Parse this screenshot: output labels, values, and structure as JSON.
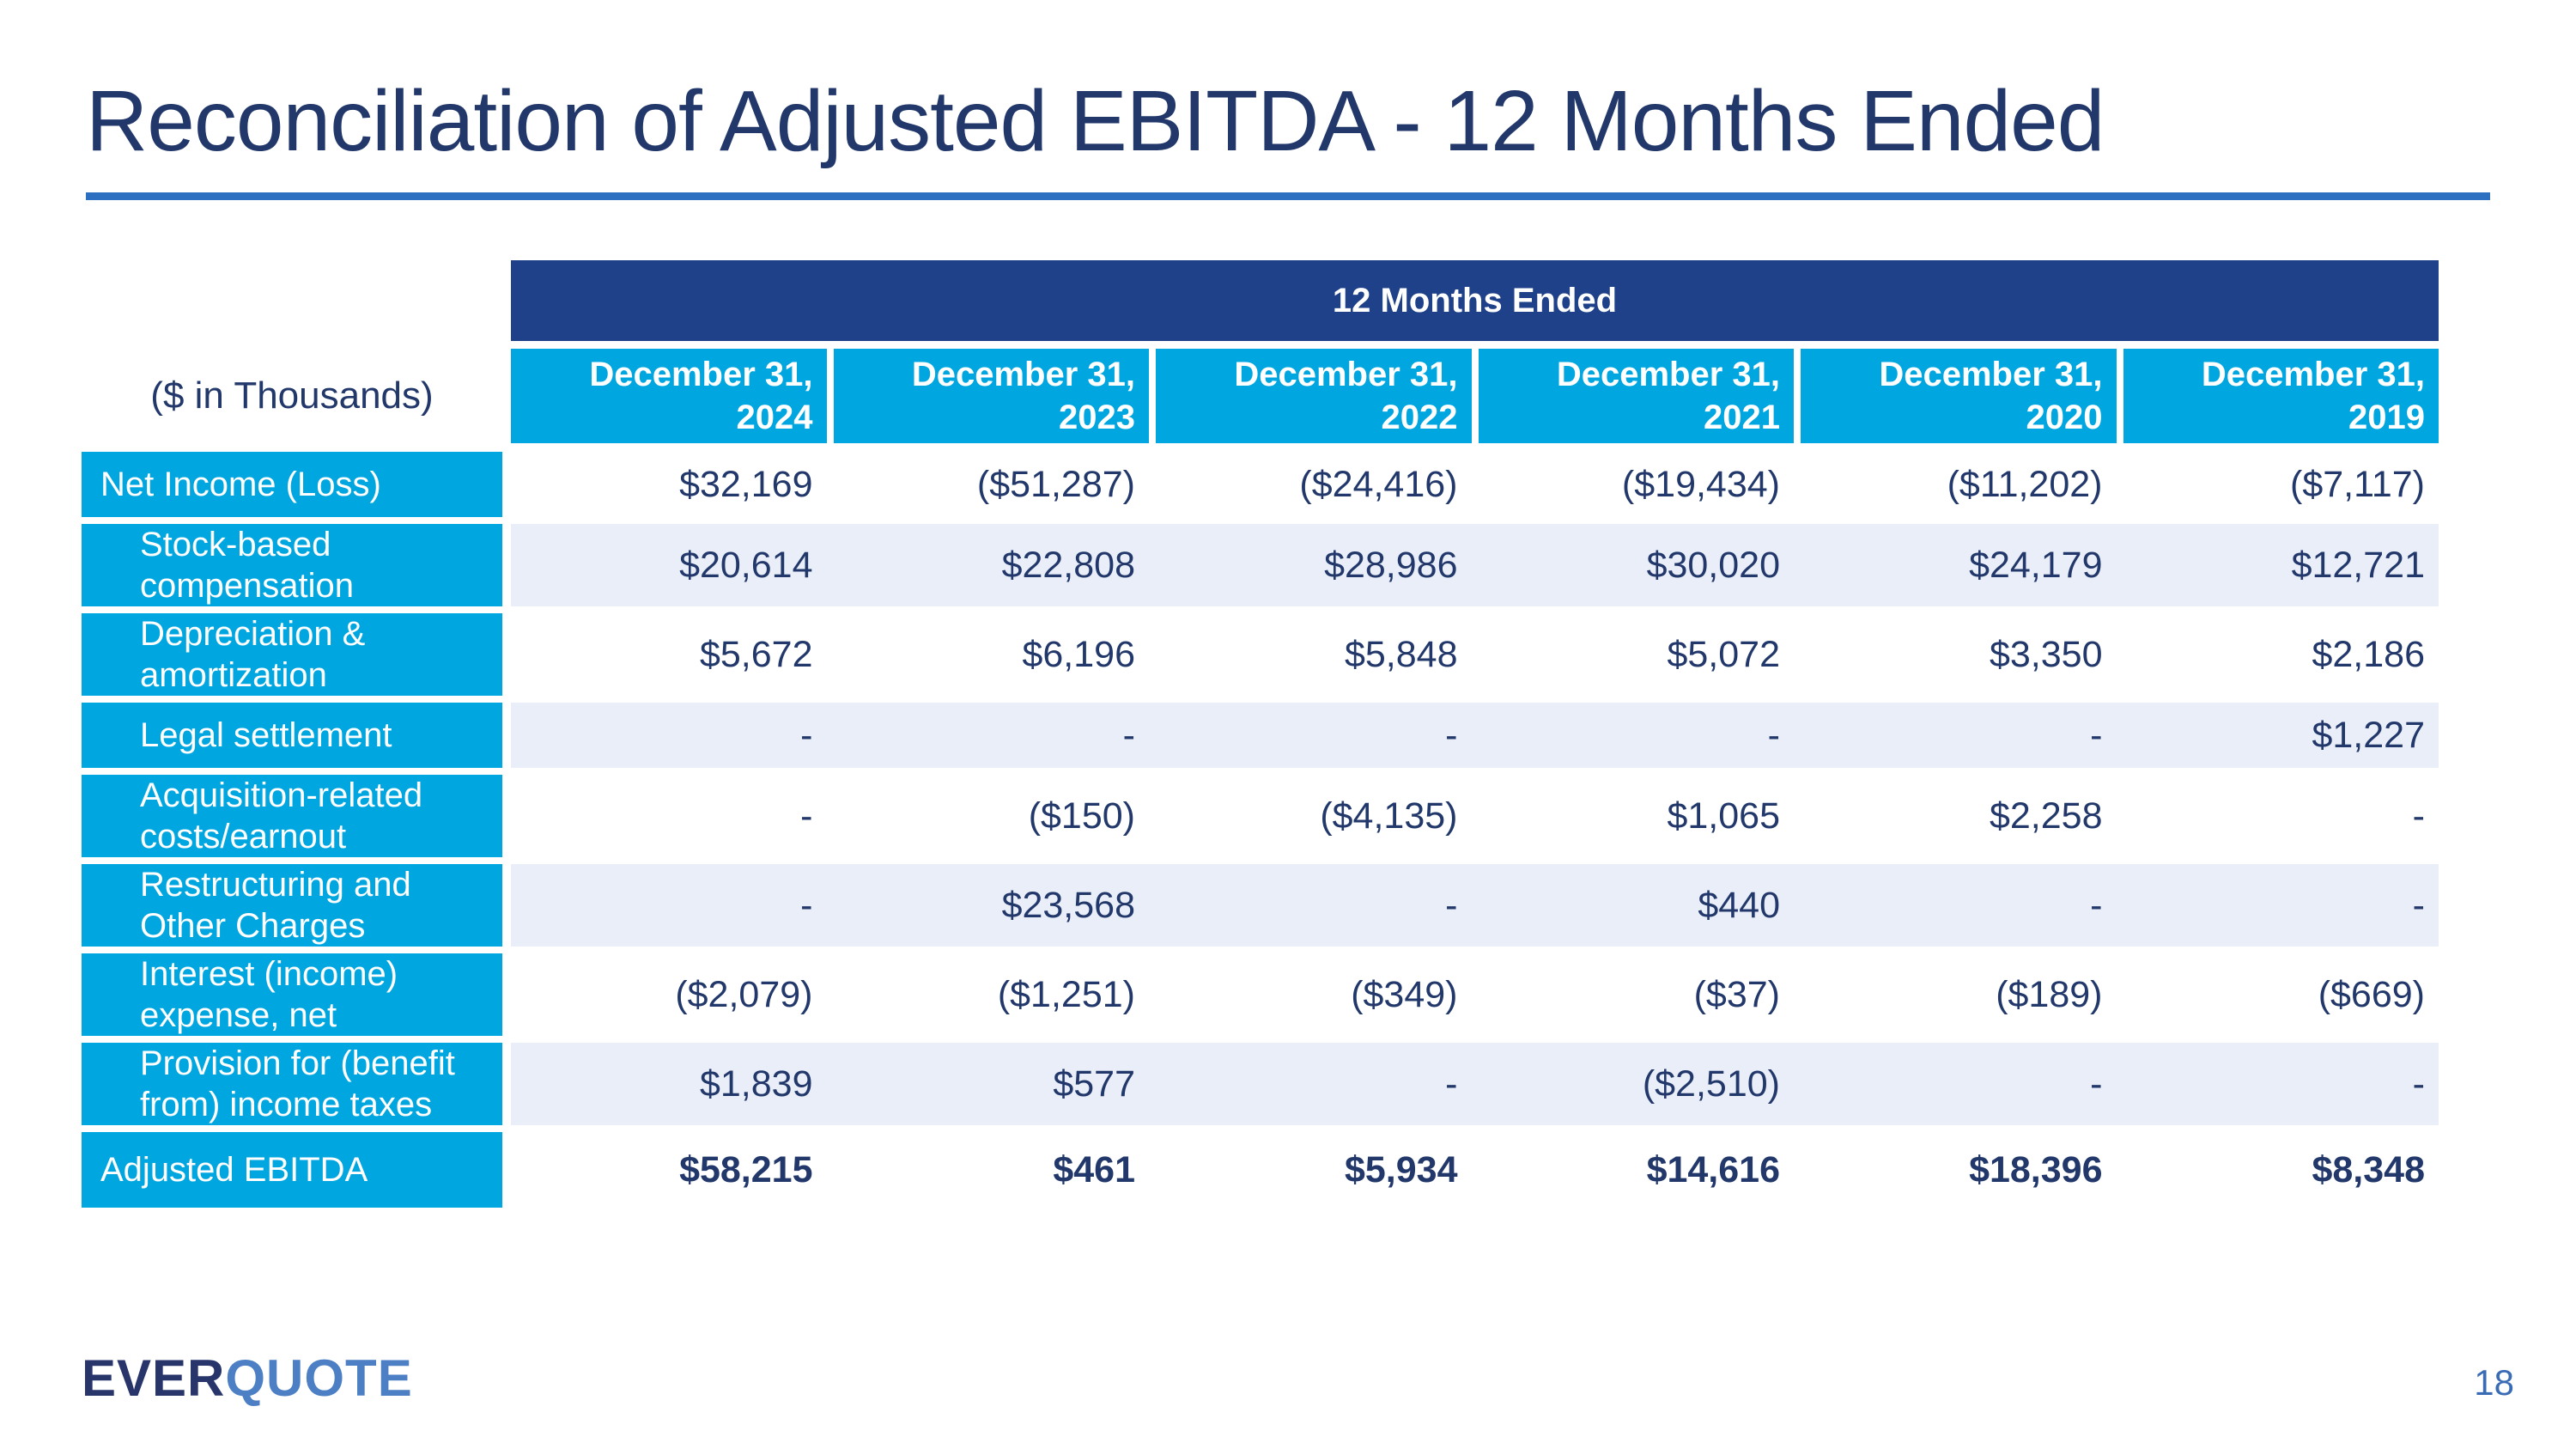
{
  "slide": {
    "title": "Reconciliation of Adjusted EBITDA - 12 Months Ended",
    "page_number": "18",
    "logo_part1": "EVER",
    "logo_part2": "QUOTE"
  },
  "table": {
    "units_label": "($ in Thousands)",
    "group_header": "12 Months Ended",
    "columns": [
      {
        "line1": "December 31,",
        "line2": "2024"
      },
      {
        "line1": "December 31,",
        "line2": "2023"
      },
      {
        "line1": "December 31,",
        "line2": "2022"
      },
      {
        "line1": "December 31,",
        "line2": "2021"
      },
      {
        "line1": "December 31,",
        "line2": "2020"
      },
      {
        "line1": "December 31,",
        "line2": "2019"
      }
    ],
    "rows": [
      {
        "label": "Net Income (Loss)",
        "indent": false,
        "bold": false,
        "values": [
          "$32,169",
          "($51,287)",
          "($24,416)",
          "($19,434)",
          "($11,202)",
          "($7,117)"
        ]
      },
      {
        "label": "Stock-based compensation",
        "indent": true,
        "bold": false,
        "values": [
          "$20,614",
          "$22,808",
          "$28,986",
          "$30,020",
          "$24,179",
          "$12,721"
        ]
      },
      {
        "label": "Depreciation & amortization",
        "indent": true,
        "bold": false,
        "values": [
          "$5,672",
          "$6,196",
          "$5,848",
          "$5,072",
          "$3,350",
          "$2,186"
        ]
      },
      {
        "label": "Legal settlement",
        "indent": true,
        "bold": false,
        "values": [
          "-",
          "-",
          "-",
          "-",
          "-",
          "$1,227"
        ]
      },
      {
        "label": "Acquisition-related costs/earnout",
        "indent": true,
        "bold": false,
        "values": [
          "-",
          "($150)",
          "($4,135)",
          "$1,065",
          "$2,258",
          "-"
        ]
      },
      {
        "label": "Restructuring and Other Charges",
        "indent": true,
        "bold": false,
        "values": [
          "-",
          "$23,568",
          "-",
          "$440",
          "-",
          "-"
        ]
      },
      {
        "label": "Interest (income) expense, net",
        "indent": true,
        "bold": false,
        "values": [
          "($2,079)",
          "($1,251)",
          "($349)",
          "($37)",
          "($189)",
          "($669)"
        ]
      },
      {
        "label": "Provision for (benefit from) income taxes",
        "indent": true,
        "bold": false,
        "values": [
          "$1,839",
          "$577",
          "-",
          "($2,510)",
          "-",
          "-"
        ]
      },
      {
        "label": "Adjusted EBITDA",
        "indent": false,
        "bold": true,
        "values": [
          "$58,215",
          "$461",
          "$5,934",
          "$14,616",
          "$18,396",
          "$8,348"
        ]
      }
    ]
  },
  "colors": {
    "navy_band": "#1e4189",
    "cyan": "#00a6e0",
    "alt_row": "#e9eef8",
    "text_navy": "#22386b",
    "accent_underline": "#2d6fc0",
    "logo_navy": "#28356b",
    "logo_blue": "#4d7fc4",
    "page_number": "#3a6cb5"
  }
}
